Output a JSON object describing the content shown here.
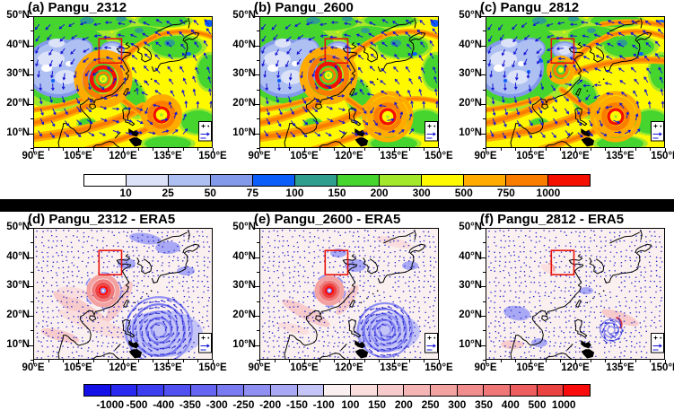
{
  "figure": {
    "background": "#FFFFFF",
    "divider_color": "#000000",
    "box_color": "#E8130C",
    "vector_color": "#1414D6"
  },
  "chart_data": [
    {
      "type": "heatmap",
      "row": "top",
      "description": "Pangu forecast fields over East Asia with wind-vector overlay, two tropical cyclones and red target box",
      "panels": [
        {
          "label": "(a) Pangu_2312"
        },
        {
          "label": "(b) Pangu_2600"
        },
        {
          "label": "(c) Pangu_2812"
        }
      ],
      "x_axis": {
        "ticks": [
          "90°E",
          "105°E",
          "120°E",
          "135°E",
          "150°E"
        ],
        "range_deg": [
          90,
          150
        ]
      },
      "y_axis": {
        "ticks": [
          "50°N",
          "40°N",
          "30°N",
          "20°N",
          "10°N"
        ],
        "range_deg": [
          5,
          50
        ]
      },
      "colorbar": {
        "tick_labels": [
          "10",
          "25",
          "50",
          "75",
          "100",
          "150",
          "200",
          "300",
          "500",
          "750",
          "1000"
        ],
        "colors": [
          "#FFFFFF",
          "#DCE2F8",
          "#AEC0F2",
          "#8399EA",
          "#0C5EFA",
          "#2F9E8E",
          "#46D42F",
          "#A4E82B",
          "#FFF900",
          "#FFAB00",
          "#FB7D00",
          "#F50F00"
        ]
      },
      "overlays": [
        "wind-vectors",
        "coastlines",
        "red-target-box",
        "reference-vector-box"
      ]
    },
    {
      "type": "heatmap",
      "row": "bottom",
      "description": "Difference maps: Pangu forecast minus ERA5, blue-red diverging scale with difference vectors",
      "panels": [
        {
          "label": "(d) Pangu_2312 - ERA5"
        },
        {
          "label": "(e) Pangu_2600 - ERA5"
        },
        {
          "label": "(f) Pangu_2812 - ERA5"
        }
      ],
      "x_axis": {
        "ticks": [
          "90°E",
          "105°E",
          "120°E",
          "135°E",
          "150°E"
        ],
        "range_deg": [
          90,
          150
        ]
      },
      "y_axis": {
        "ticks": [
          "50°N",
          "40°N",
          "30°N",
          "20°N",
          "10°N"
        ],
        "range_deg": [
          5,
          50
        ]
      },
      "colorbar": {
        "tick_labels": [
          "-1000",
          "-500",
          "-400",
          "-350",
          "-300",
          "-250",
          "-200",
          "-150",
          "-100",
          "100",
          "150",
          "200",
          "250",
          "300",
          "350",
          "400",
          "500",
          "1000"
        ],
        "colors": [
          "#1410E8",
          "#2929F0",
          "#3D3DF2",
          "#5151F2",
          "#6565F1",
          "#7A7AF1",
          "#9090F2",
          "#A8A8F4",
          "#C4C4F7",
          "#FBF0F0",
          "#FADDDD",
          "#F7CBCB",
          "#F5B5B5",
          "#F3A2A2",
          "#F18D8D",
          "#EF7777",
          "#ED5D5D",
          "#EB4242",
          "#FA0C0C"
        ]
      },
      "overlays": [
        "difference-vectors",
        "coastlines",
        "red-target-box",
        "reference-vector-box"
      ]
    }
  ]
}
